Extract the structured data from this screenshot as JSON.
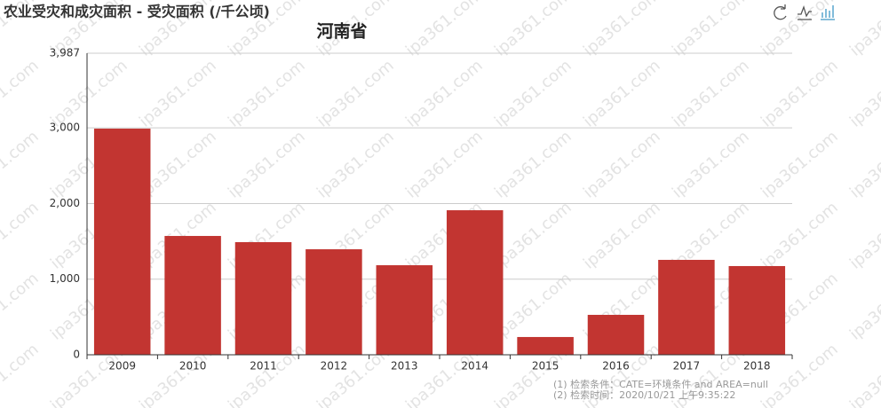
{
  "chart_data": {
    "type": "bar",
    "title": "农业受灾和成灾面积 - 受灾面积 (/千公顷)",
    "subtitle": "河南省",
    "categories": [
      "2009",
      "2010",
      "2011",
      "2012",
      "2013",
      "2014",
      "2015",
      "2016",
      "2017",
      "2018"
    ],
    "values": [
      2990,
      1571,
      1489,
      1395,
      1184,
      1911,
      235,
      528,
      1255,
      1173
    ],
    "color": "#c23531",
    "ylim": [
      0,
      3987
    ],
    "yticks": [
      0,
      {
        "value": 1000,
        "label": "1,000"
      },
      {
        "value": 2000,
        "label": "2,000"
      },
      {
        "value": 3000,
        "label": "3,000"
      },
      {
        "value": 3987,
        "label": "3,987"
      }
    ],
    "grid": true,
    "notes": [
      "(1) 检索条件：CATE=环境条件 and AREA=null",
      "(2) 检索时间：2020/10/21 上午9:35:22"
    ],
    "watermark": "ipa361.com"
  }
}
